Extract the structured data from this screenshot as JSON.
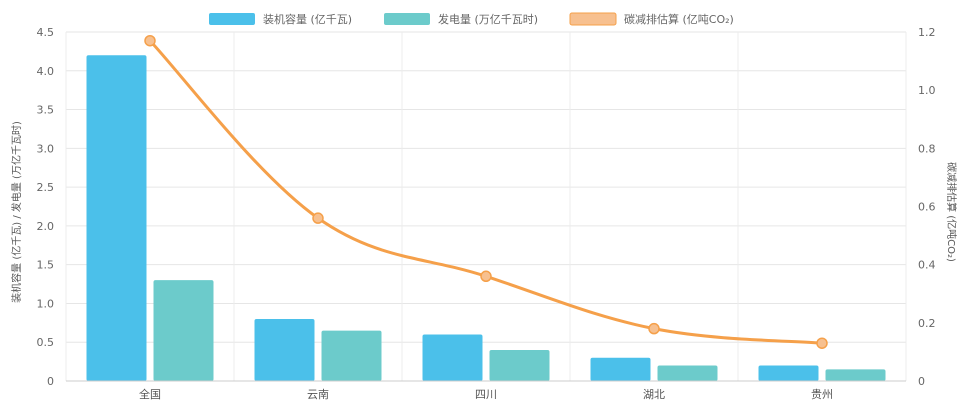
{
  "chart_data": {
    "type": "bar",
    "categories": [
      "全国",
      "云南",
      "四川",
      "湖北",
      "贵州"
    ],
    "series": [
      {
        "name": "装机容量 (亿千瓦)",
        "kind": "bar",
        "axis": "left",
        "color": "#4bc0ea",
        "values": [
          4.2,
          0.8,
          0.6,
          0.3,
          0.2
        ]
      },
      {
        "name": "发电量 (万亿千瓦时)",
        "kind": "bar",
        "axis": "left",
        "color": "#6ccbcb",
        "values": [
          1.3,
          0.65,
          0.4,
          0.2,
          0.15
        ]
      },
      {
        "name": "碳减排估算 (亿吨CO₂)",
        "kind": "line",
        "axis": "right",
        "color": "#f5a04a",
        "values": [
          1.17,
          0.56,
          0.36,
          0.18,
          0.13
        ]
      }
    ],
    "ylabel_left": "装机容量 (亿千瓦) / 发电量 (万亿千瓦时)",
    "ylabel_right": "碳减排估算 (亿吨CO₂)",
    "ylim_left": [
      0,
      4.5
    ],
    "ylim_right": [
      0,
      1.2
    ],
    "yticks_left": [
      "0",
      "0.5",
      "1.0",
      "1.5",
      "2.0",
      "2.5",
      "3.0",
      "3.5",
      "4.0",
      "4.5"
    ],
    "yticks_right": [
      "0",
      "0.2",
      "0.4",
      "0.6",
      "0.8",
      "1.0",
      "1.2"
    ],
    "grid": true,
    "legend_position": "top"
  }
}
